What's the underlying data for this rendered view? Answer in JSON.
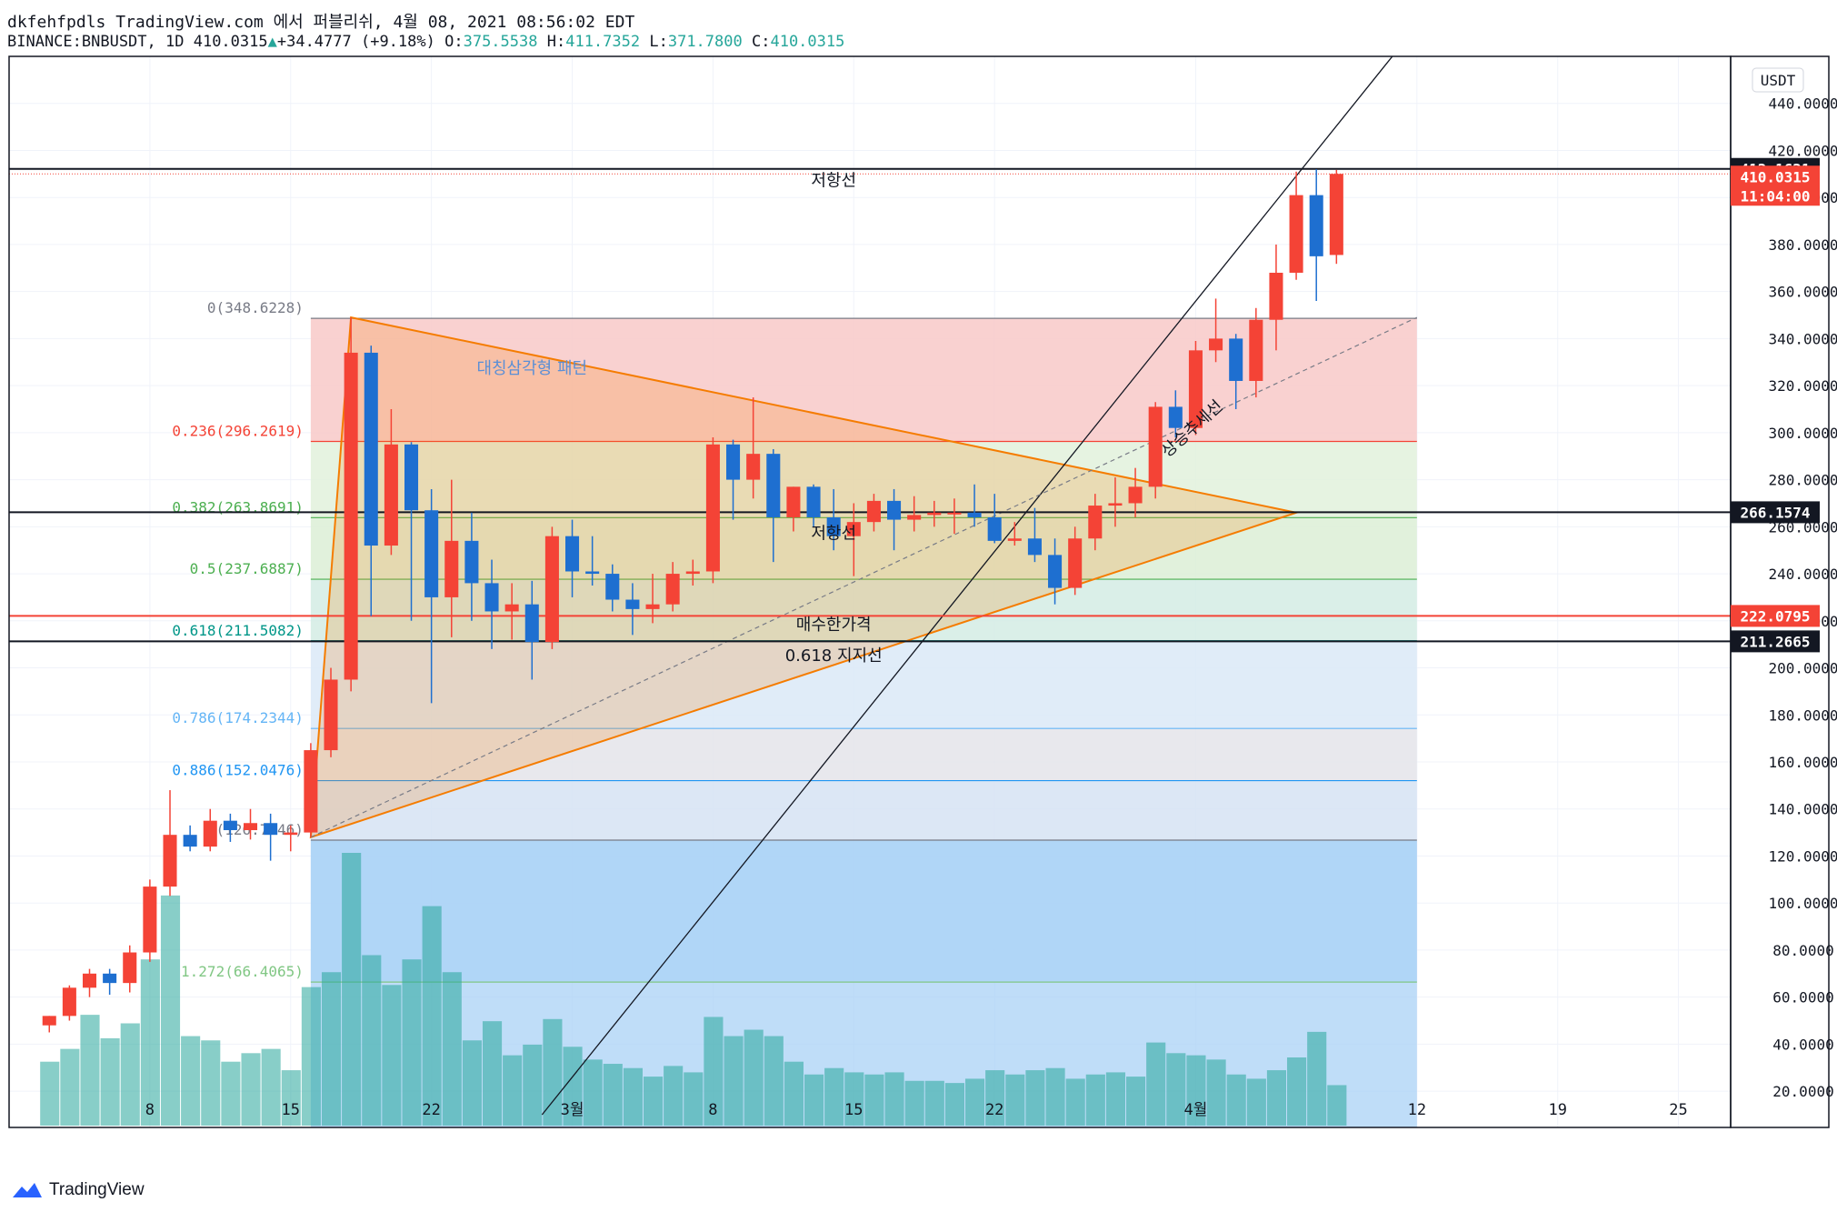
{
  "header": {
    "line1": "dkfehfpdls TradingView.com 에서 퍼블리쉬, 4월 08, 2021 08:56:02 EDT",
    "symbol": "BINANCE:BNBUSDT, 1D",
    "last": "410.0315",
    "arrow": "▲",
    "change": "+34.4777 (+9.18%)",
    "o_label": "O:",
    "o": "375.5538",
    "h_label": "H:",
    "h": "411.7352",
    "l_label": "L:",
    "l": "371.7800",
    "c_label": "C:",
    "c": "410.0315"
  },
  "brand": {
    "name": "TradingView",
    "icon": "tradingview-logo-icon"
  },
  "colors": {
    "up": "#f44336",
    "down": "#1e6fd0",
    "volume": "#26a69a",
    "grid": "#f0f3fa",
    "triangle": "#f57c00",
    "trendline": "#131722"
  },
  "chart_data": {
    "type": "candlestick",
    "currency": "USDT",
    "ylim": [
      10,
      460
    ],
    "y_ticks": [
      "440.0000",
      "420.0000",
      "400.0000",
      "380.0000",
      "360.0000",
      "340.0000",
      "320.0000",
      "300.0000",
      "280.0000",
      "260.0000",
      "240.0000",
      "220.0000",
      "200.0000",
      "180.0000",
      "160.0000",
      "140.0000",
      "120.0000",
      "100.0000",
      "80.0000",
      "60.0000",
      "40.0000",
      "20.0000"
    ],
    "x_ticks": [
      {
        "label": "8",
        "day": 7
      },
      {
        "label": "15",
        "day": 14
      },
      {
        "label": "22",
        "day": 21
      },
      {
        "label": "3월",
        "day": 28
      },
      {
        "label": "8",
        "day": 35
      },
      {
        "label": "15",
        "day": 42
      },
      {
        "label": "22",
        "day": 49
      },
      {
        "label": "4월",
        "day": 59
      },
      {
        "label": "12",
        "day": 70
      },
      {
        "label": "19",
        "day": 77
      },
      {
        "label": "25",
        "day": 83
      }
    ],
    "candles": [
      {
        "d": 2,
        "o": 48,
        "h": 52,
        "l": 45,
        "c": 52
      },
      {
        "d": 3,
        "o": 52,
        "h": 65,
        "l": 50,
        "c": 64
      },
      {
        "d": 4,
        "o": 64,
        "h": 72,
        "l": 60,
        "c": 70
      },
      {
        "d": 5,
        "o": 70,
        "h": 72,
        "l": 61,
        "c": 66
      },
      {
        "d": 6,
        "o": 66,
        "h": 82,
        "l": 62,
        "c": 79
      },
      {
        "d": 7,
        "o": 79,
        "h": 110,
        "l": 75,
        "c": 107
      },
      {
        "d": 8,
        "o": 107,
        "h": 148,
        "l": 103,
        "c": 129
      },
      {
        "d": 9,
        "o": 129,
        "h": 133,
        "l": 122,
        "c": 124
      },
      {
        "d": 10,
        "o": 124,
        "h": 140,
        "l": 122,
        "c": 135
      },
      {
        "d": 11,
        "o": 135,
        "h": 138,
        "l": 126,
        "c": 131
      },
      {
        "d": 12,
        "o": 131,
        "h": 140,
        "l": 127,
        "c": 134
      },
      {
        "d": 13,
        "o": 134,
        "h": 138,
        "l": 118,
        "c": 129
      },
      {
        "d": 14,
        "o": 129,
        "h": 133,
        "l": 122,
        "c": 130
      },
      {
        "d": 15,
        "o": 130,
        "h": 168,
        "l": 128,
        "c": 165
      },
      {
        "d": 16,
        "o": 165,
        "h": 200,
        "l": 162,
        "c": 195
      },
      {
        "d": 17,
        "o": 195,
        "h": 349,
        "l": 190,
        "c": 334
      },
      {
        "d": 18,
        "o": 334,
        "h": 337,
        "l": 222,
        "c": 252
      },
      {
        "d": 19,
        "o": 252,
        "h": 310,
        "l": 248,
        "c": 295
      },
      {
        "d": 20,
        "o": 295,
        "h": 296,
        "l": 220,
        "c": 267
      },
      {
        "d": 21,
        "o": 267,
        "h": 276,
        "l": 185,
        "c": 230
      },
      {
        "d": 22,
        "o": 230,
        "h": 280,
        "l": 213,
        "c": 254
      },
      {
        "d": 23,
        "o": 254,
        "h": 266,
        "l": 220,
        "c": 236
      },
      {
        "d": 24,
        "o": 236,
        "h": 246,
        "l": 208,
        "c": 224
      },
      {
        "d": 25,
        "o": 224,
        "h": 236,
        "l": 212,
        "c": 227
      },
      {
        "d": 26,
        "o": 227,
        "h": 237,
        "l": 195,
        "c": 211
      },
      {
        "d": 27,
        "o": 211,
        "h": 260,
        "l": 208,
        "c": 256
      },
      {
        "d": 28,
        "o": 256,
        "h": 263,
        "l": 230,
        "c": 241
      },
      {
        "d": 29,
        "o": 241,
        "h": 256,
        "l": 235,
        "c": 240
      },
      {
        "d": 30,
        "o": 240,
        "h": 244,
        "l": 224,
        "c": 229
      },
      {
        "d": 31,
        "o": 229,
        "h": 236,
        "l": 214,
        "c": 225
      },
      {
        "d": 32,
        "o": 225,
        "h": 240,
        "l": 219,
        "c": 227
      },
      {
        "d": 33,
        "o": 227,
        "h": 245,
        "l": 224,
        "c": 240
      },
      {
        "d": 34,
        "o": 240,
        "h": 246,
        "l": 235,
        "c": 241
      },
      {
        "d": 35,
        "o": 241,
        "h": 298,
        "l": 236,
        "c": 295
      },
      {
        "d": 36,
        "o": 295,
        "h": 297,
        "l": 263,
        "c": 280
      },
      {
        "d": 37,
        "o": 280,
        "h": 315,
        "l": 272,
        "c": 291
      },
      {
        "d": 38,
        "o": 291,
        "h": 293,
        "l": 245,
        "c": 264
      },
      {
        "d": 39,
        "o": 264,
        "h": 277,
        "l": 258,
        "c": 277
      },
      {
        "d": 40,
        "o": 277,
        "h": 278,
        "l": 260,
        "c": 264
      },
      {
        "d": 41,
        "o": 264,
        "h": 276,
        "l": 250,
        "c": 256
      },
      {
        "d": 42,
        "o": 256,
        "h": 270,
        "l": 239,
        "c": 262
      },
      {
        "d": 43,
        "o": 262,
        "h": 274,
        "l": 258,
        "c": 271
      },
      {
        "d": 44,
        "o": 271,
        "h": 276,
        "l": 250,
        "c": 263
      },
      {
        "d": 45,
        "o": 263,
        "h": 273,
        "l": 258,
        "c": 265
      },
      {
        "d": 46,
        "o": 265,
        "h": 271,
        "l": 260,
        "c": 266
      },
      {
        "d": 47,
        "o": 266,
        "h": 272,
        "l": 257,
        "c": 266
      },
      {
        "d": 48,
        "o": 266,
        "h": 278,
        "l": 260,
        "c": 264
      },
      {
        "d": 49,
        "o": 264,
        "h": 274,
        "l": 253,
        "c": 254
      },
      {
        "d": 50,
        "o": 254,
        "h": 262,
        "l": 252,
        "c": 255
      },
      {
        "d": 51,
        "o": 255,
        "h": 268,
        "l": 245,
        "c": 248
      },
      {
        "d": 52,
        "o": 248,
        "h": 255,
        "l": 227,
        "c": 234
      },
      {
        "d": 53,
        "o": 234,
        "h": 260,
        "l": 231,
        "c": 255
      },
      {
        "d": 54,
        "o": 255,
        "h": 274,
        "l": 250,
        "c": 269
      },
      {
        "d": 55,
        "o": 269,
        "h": 281,
        "l": 260,
        "c": 270
      },
      {
        "d": 56,
        "o": 270,
        "h": 285,
        "l": 264,
        "c": 277
      },
      {
        "d": 57,
        "o": 277,
        "h": 313,
        "l": 272,
        "c": 311
      },
      {
        "d": 58,
        "o": 311,
        "h": 318,
        "l": 298,
        "c": 302
      },
      {
        "d": 59,
        "o": 302,
        "h": 339,
        "l": 299,
        "c": 335
      },
      {
        "d": 60,
        "o": 335,
        "h": 357,
        "l": 330,
        "c": 340
      },
      {
        "d": 61,
        "o": 340,
        "h": 342,
        "l": 310,
        "c": 322
      },
      {
        "d": 62,
        "o": 322,
        "h": 353,
        "l": 315,
        "c": 348
      },
      {
        "d": 63,
        "o": 348,
        "h": 380,
        "l": 335,
        "c": 368
      },
      {
        "d": 64,
        "o": 368,
        "h": 411,
        "l": 365,
        "c": 401
      },
      {
        "d": 65,
        "o": 401,
        "h": 412,
        "l": 356,
        "c": 375
      },
      {
        "d": 66,
        "o": 375.5538,
        "h": 411.7352,
        "l": 371.78,
        "c": 410.0315
      }
    ],
    "volumes": [
      {
        "d": 2,
        "v": 30
      },
      {
        "d": 3,
        "v": 36
      },
      {
        "d": 4,
        "v": 52
      },
      {
        "d": 5,
        "v": 41
      },
      {
        "d": 6,
        "v": 48
      },
      {
        "d": 7,
        "v": 78
      },
      {
        "d": 8,
        "v": 108
      },
      {
        "d": 9,
        "v": 42
      },
      {
        "d": 10,
        "v": 40
      },
      {
        "d": 11,
        "v": 30
      },
      {
        "d": 12,
        "v": 34
      },
      {
        "d": 13,
        "v": 36
      },
      {
        "d": 14,
        "v": 26
      },
      {
        "d": 15,
        "v": 65
      },
      {
        "d": 16,
        "v": 72
      },
      {
        "d": 17,
        "v": 128
      },
      {
        "d": 18,
        "v": 80
      },
      {
        "d": 19,
        "v": 66
      },
      {
        "d": 20,
        "v": 78
      },
      {
        "d": 21,
        "v": 103
      },
      {
        "d": 22,
        "v": 72
      },
      {
        "d": 23,
        "v": 40
      },
      {
        "d": 24,
        "v": 49
      },
      {
        "d": 25,
        "v": 33
      },
      {
        "d": 26,
        "v": 38
      },
      {
        "d": 27,
        "v": 50
      },
      {
        "d": 28,
        "v": 37
      },
      {
        "d": 29,
        "v": 31
      },
      {
        "d": 30,
        "v": 29
      },
      {
        "d": 31,
        "v": 27
      },
      {
        "d": 32,
        "v": 23
      },
      {
        "d": 33,
        "v": 28
      },
      {
        "d": 34,
        "v": 25
      },
      {
        "d": 35,
        "v": 51
      },
      {
        "d": 36,
        "v": 42
      },
      {
        "d": 37,
        "v": 45
      },
      {
        "d": 38,
        "v": 42
      },
      {
        "d": 39,
        "v": 30
      },
      {
        "d": 40,
        "v": 24
      },
      {
        "d": 41,
        "v": 27
      },
      {
        "d": 42,
        "v": 25
      },
      {
        "d": 43,
        "v": 24
      },
      {
        "d": 44,
        "v": 25
      },
      {
        "d": 45,
        "v": 21
      },
      {
        "d": 46,
        "v": 21
      },
      {
        "d": 47,
        "v": 20
      },
      {
        "d": 48,
        "v": 22
      },
      {
        "d": 49,
        "v": 26
      },
      {
        "d": 50,
        "v": 24
      },
      {
        "d": 51,
        "v": 26
      },
      {
        "d": 52,
        "v": 27
      },
      {
        "d": 53,
        "v": 22
      },
      {
        "d": 54,
        "v": 24
      },
      {
        "d": 55,
        "v": 25
      },
      {
        "d": 56,
        "v": 23
      },
      {
        "d": 57,
        "v": 39
      },
      {
        "d": 58,
        "v": 34
      },
      {
        "d": 59,
        "v": 33
      },
      {
        "d": 60,
        "v": 31
      },
      {
        "d": 61,
        "v": 24
      },
      {
        "d": 62,
        "v": 22
      },
      {
        "d": 63,
        "v": 26
      },
      {
        "d": 64,
        "v": 32
      },
      {
        "d": 65,
        "v": 44
      },
      {
        "d": 66,
        "v": 19
      }
    ],
    "fib": {
      "start_day": 15,
      "end_day": 70,
      "levels": [
        {
          "label": "0(348.6228)",
          "price": 348.6228,
          "color": "#787b86",
          "fill": "#f8c9c8"
        },
        {
          "label": "0.236(296.2619)",
          "price": 296.2619,
          "color": "#f44336",
          "fill": "#e2f1dc"
        },
        {
          "label": "0.382(263.8691)",
          "price": 263.8691,
          "color": "#4caf50",
          "fill": "#dcefd6"
        },
        {
          "label": "0.5(237.6887)",
          "price": 237.6887,
          "color": "#4caf50",
          "fill": "#d3ece4"
        },
        {
          "label": "0.618(211.5082)",
          "price": 211.5082,
          "color": "#009688",
          "fill": "#dbe9f7"
        },
        {
          "label": "0.786(174.2344)",
          "price": 174.2344,
          "color": "#64b5f6",
          "fill": "#e4e4ea"
        },
        {
          "label": "0.886(152.0476)",
          "price": 152.0476,
          "color": "#2196f3",
          "fill": "#d6e3f3"
        },
        {
          "label": "1(126.7546)",
          "price": 126.7546,
          "color": "#787b86",
          "fill": "#b9dcf9"
        },
        {
          "label": "1.272(66.4065)",
          "price": 66.4065,
          "color": "#81c784",
          "fill": null
        }
      ]
    },
    "triangle": {
      "points": [
        [
          15,
          128
        ],
        [
          17,
          349
        ],
        [
          64,
          266
        ]
      ]
    },
    "trendline_main": {
      "from": [
        26.5,
        10
      ],
      "to": [
        70,
        473
      ]
    },
    "trendline_dashed": {
      "from": [
        15,
        128
      ],
      "to": [
        70,
        349
      ]
    },
    "hlines": [
      {
        "price": 412.1621,
        "color": "#131722",
        "width": 2,
        "label": "412.1621"
      },
      {
        "price": 266.1574,
        "color": "#131722",
        "width": 2,
        "label": "266.1574"
      },
      {
        "price": 222.0795,
        "color": "#f44336",
        "width": 2,
        "label": "222.0795"
      },
      {
        "price": 211.2665,
        "color": "#131722",
        "width": 2,
        "label": "211.2665"
      }
    ],
    "current_price": {
      "label": "410.0315",
      "countdown": "11:04:00",
      "price": 410.0315
    },
    "annotations": [
      {
        "text": "저항선",
        "day": 41,
        "price": 405,
        "color": "#131722"
      },
      {
        "text": "대칭삼각형 패턴",
        "day": 26,
        "price": 325,
        "color": "#5b8fd6"
      },
      {
        "text": "저항선",
        "day": 41,
        "price": 255,
        "color": "#131722"
      },
      {
        "text": "매수한가격",
        "day": 41,
        "price": 216,
        "color": "#131722"
      },
      {
        "text": "0.618 지지선",
        "day": 41,
        "price": 203,
        "color": "#131722"
      },
      {
        "text": "상승추세선",
        "day": 59,
        "price": 300,
        "color": "#131722",
        "rotate": -42
      }
    ]
  }
}
